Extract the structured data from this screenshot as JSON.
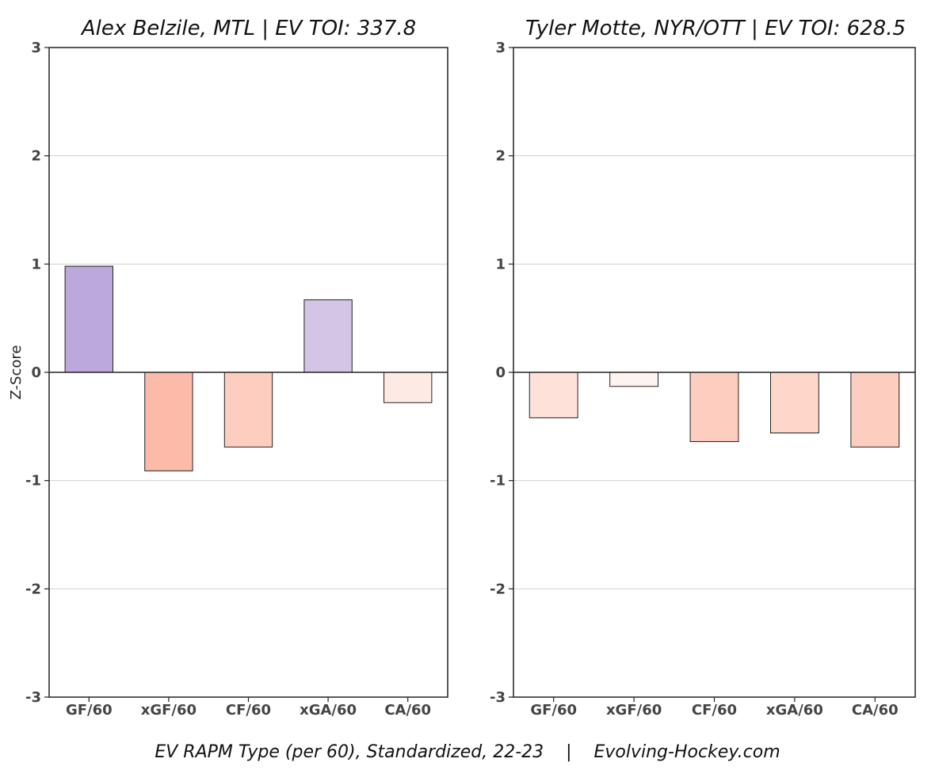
{
  "footer": "EV RAPM Type (per 60), Standardized, 22-23    |    Evolving-Hockey.com",
  "ylabel": "Z-Score",
  "colors": {
    "positive_strong": "#bca8dc",
    "positive_light": "#d4c4e6",
    "negative_strong": "#fcbba9",
    "negative_mid": "#fcc8ba",
    "negative_light": "#fde2da",
    "negative_faint": "#fff0ec"
  },
  "chart_data": [
    {
      "type": "bar",
      "title": "Alex Belzile, MTL  |  EV TOI: 337.8",
      "categories": [
        "GF/60",
        "xGF/60",
        "CF/60",
        "xGA/60",
        "CA/60"
      ],
      "values": [
        0.98,
        -0.91,
        -0.69,
        0.67,
        -0.28
      ],
      "bar_colors": [
        "#bca8dc",
        "#fcbba9",
        "#fdcdbf",
        "#d4c4e6",
        "#feeae5"
      ],
      "ylim": [
        -3,
        3
      ],
      "yticks": [
        "-3",
        "-2",
        "-1",
        "0",
        "1",
        "2",
        "3"
      ],
      "grid": true
    },
    {
      "type": "bar",
      "title": "Tyler Motte, NYR/OTT  |  EV TOI: 628.5",
      "categories": [
        "GF/60",
        "xGF/60",
        "CF/60",
        "xGA/60",
        "CA/60"
      ],
      "values": [
        -0.42,
        -0.13,
        -0.64,
        -0.56,
        -0.69
      ],
      "bar_colors": [
        "#fee2da",
        "#fff3ef",
        "#fdcdbf",
        "#fed6ca",
        "#fdcdbf"
      ],
      "ylim": [
        -3,
        3
      ],
      "yticks": [
        "-3",
        "-2",
        "-1",
        "0",
        "1",
        "2",
        "3"
      ],
      "grid": true
    }
  ]
}
